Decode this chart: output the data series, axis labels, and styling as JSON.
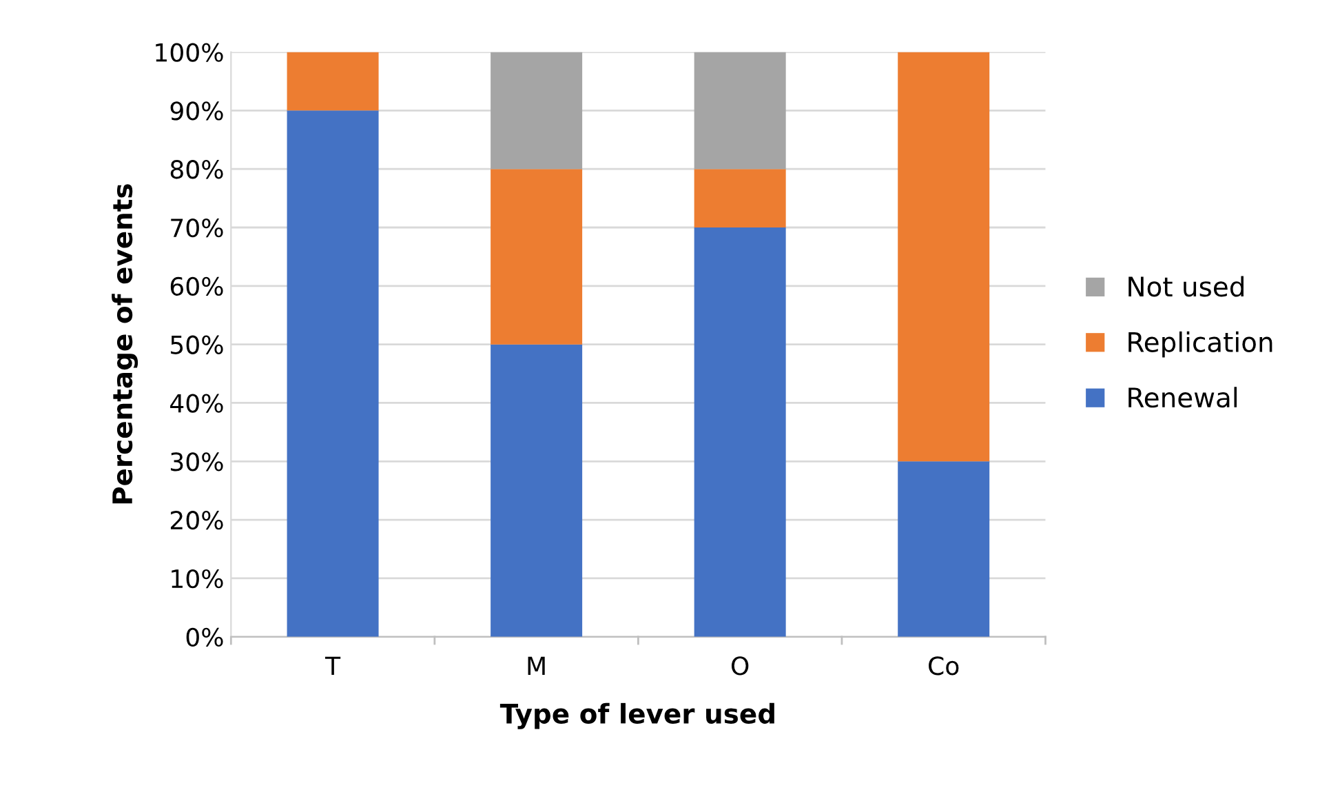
{
  "chart_data": {
    "type": "bar",
    "stacked": true,
    "xlabel": "Type of lever used",
    "ylabel": "Percentage of events",
    "categories": [
      "T",
      "M",
      "O",
      "Co"
    ],
    "series": [
      {
        "name": "Renewal",
        "color": "#4472c4",
        "values": [
          90,
          50,
          70,
          30
        ]
      },
      {
        "name": "Replication",
        "color": "#ed7d31",
        "values": [
          10,
          30,
          10,
          70
        ]
      },
      {
        "name": "Not used",
        "color": "#a5a5a5",
        "values": [
          0,
          20,
          20,
          0
        ]
      }
    ],
    "ylim": [
      0,
      100
    ],
    "yticks": [
      {
        "value": 0,
        "label": "0%"
      },
      {
        "value": 10,
        "label": "10%"
      },
      {
        "value": 20,
        "label": "20%"
      },
      {
        "value": 30,
        "label": "30%"
      },
      {
        "value": 40,
        "label": "40%"
      },
      {
        "value": 50,
        "label": "50%"
      },
      {
        "value": 60,
        "label": "60%"
      },
      {
        "value": 70,
        "label": "70%"
      },
      {
        "value": 80,
        "label": "80%"
      },
      {
        "value": 90,
        "label": "90%"
      },
      {
        "value": 100,
        "label": "100%"
      }
    ],
    "grid": "y",
    "legend": "right"
  }
}
